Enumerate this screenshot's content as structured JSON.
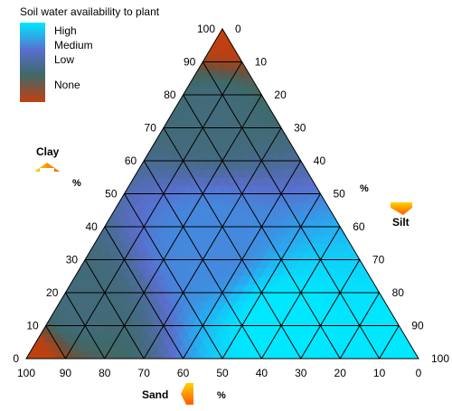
{
  "chart_data": {
    "type": "ternary-heatmap",
    "title": "Soil water availability to plant",
    "legend": {
      "placement": "top-left",
      "entries": [
        "High",
        "Medium",
        "Low",
        "None"
      ],
      "colors": [
        "#00e8ff",
        "#5a6ecd",
        "#3e6a6a",
        "#c04010"
      ]
    },
    "axes": {
      "clay": {
        "name": "Clay",
        "unit": "%",
        "ticks": [
          0,
          10,
          20,
          30,
          40,
          50,
          60,
          70,
          80,
          90,
          100
        ]
      },
      "silt": {
        "name": "Silt",
        "unit": "%",
        "ticks": [
          0,
          10,
          20,
          30,
          40,
          50,
          60,
          70,
          80,
          90,
          100
        ]
      },
      "sand": {
        "name": "Sand",
        "unit": "%",
        "ticks": [
          100,
          90,
          80,
          70,
          60,
          50,
          40,
          30,
          20,
          10,
          0
        ]
      }
    },
    "grid": true,
    "grid_step": 10,
    "availability_regions": [
      {
        "level": "None",
        "clay": 100,
        "silt": 0,
        "sand": 0
      },
      {
        "level": "Low",
        "clay": 75,
        "silt": 10,
        "sand": 15
      },
      {
        "level": "Medium",
        "clay": 35,
        "silt": 30,
        "sand": 35
      },
      {
        "level": "Low",
        "clay": 15,
        "silt": 5,
        "sand": 80
      },
      {
        "level": "None",
        "clay": 0,
        "silt": 0,
        "sand": 100
      },
      {
        "level": "High",
        "clay": 10,
        "silt": 60,
        "sand": 30
      },
      {
        "level": "High",
        "clay": 0,
        "silt": 100,
        "sand": 0
      }
    ]
  }
}
